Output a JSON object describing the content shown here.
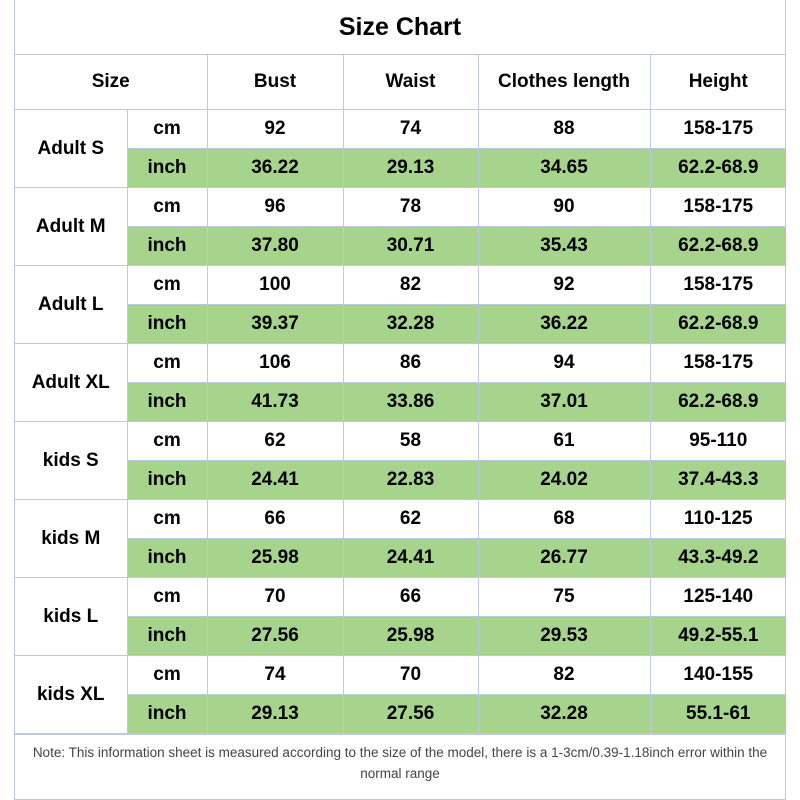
{
  "title": "Size Chart",
  "headers": {
    "size": "Size",
    "bust": "Bust",
    "waist": "Waist",
    "length": "Clothes length",
    "height": "Height"
  },
  "units": {
    "cm": "cm",
    "inch": "inch"
  },
  "colors": {
    "inch_row_bg": "#a6d48c",
    "border": "#bfc9de"
  },
  "sizes": [
    {
      "name": "Adult S",
      "cm": [
        "92",
        "74",
        "88",
        "158-175"
      ],
      "inch": [
        "36.22",
        "29.13",
        "34.65",
        "62.2-68.9"
      ]
    },
    {
      "name": "Adult M",
      "cm": [
        "96",
        "78",
        "90",
        "158-175"
      ],
      "inch": [
        "37.80",
        "30.71",
        "35.43",
        "62.2-68.9"
      ]
    },
    {
      "name": "Adult L",
      "cm": [
        "100",
        "82",
        "92",
        "158-175"
      ],
      "inch": [
        "39.37",
        "32.28",
        "36.22",
        "62.2-68.9"
      ]
    },
    {
      "name": "Adult XL",
      "cm": [
        "106",
        "86",
        "94",
        "158-175"
      ],
      "inch": [
        "41.73",
        "33.86",
        "37.01",
        "62.2-68.9"
      ]
    },
    {
      "name": "kids S",
      "cm": [
        "62",
        "58",
        "61",
        "95-110"
      ],
      "inch": [
        "24.41",
        "22.83",
        "24.02",
        "37.4-43.3"
      ]
    },
    {
      "name": "kids M",
      "cm": [
        "66",
        "62",
        "68",
        "110-125"
      ],
      "inch": [
        "25.98",
        "24.41",
        "26.77",
        "43.3-49.2"
      ]
    },
    {
      "name": "kids L",
      "cm": [
        "70",
        "66",
        "75",
        "125-140"
      ],
      "inch": [
        "27.56",
        "25.98",
        "29.53",
        "49.2-55.1"
      ]
    },
    {
      "name": "kids XL",
      "cm": [
        "74",
        "70",
        "82",
        "140-155"
      ],
      "inch": [
        "29.13",
        "27.56",
        "32.28",
        "55.1-61"
      ]
    }
  ],
  "note": "Note: This information sheet is measured according to the size of the model, there is a 1-3cm/0.39-1.18inch error within the normal range"
}
